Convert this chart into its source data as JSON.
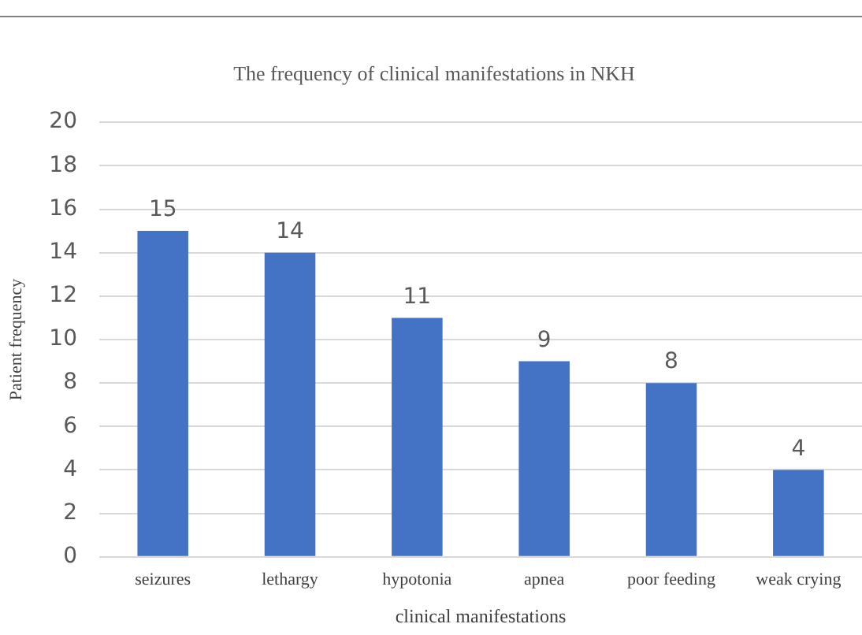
{
  "chart_data": {
    "type": "bar",
    "title": "The frequency of clinical manifestations in NKH",
    "xlabel": "clinical manifestations",
    "ylabel": "Patient frequency",
    "categories": [
      "seizures",
      "lethargy",
      "hypotonia",
      "apnea",
      "poor feeding",
      "weak crying"
    ],
    "values": [
      15,
      14,
      11,
      9,
      8,
      4
    ],
    "color": "#4472c4",
    "ylim": [
      0,
      20
    ],
    "yticks": [
      0,
      2,
      4,
      6,
      8,
      10,
      12,
      14,
      16,
      18,
      20
    ],
    "grid": "y",
    "data_labels": true,
    "legend": false
  }
}
